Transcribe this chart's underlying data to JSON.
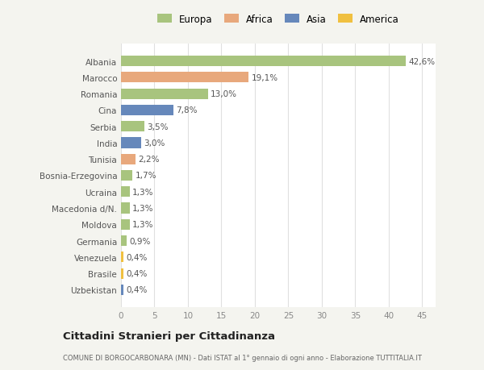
{
  "countries": [
    "Albania",
    "Marocco",
    "Romania",
    "Cina",
    "Serbia",
    "India",
    "Tunisia",
    "Bosnia-Erzegovina",
    "Ucraina",
    "Macedonia d/N.",
    "Moldova",
    "Germania",
    "Venezuela",
    "Brasile",
    "Uzbekistan"
  ],
  "values": [
    42.6,
    19.1,
    13.0,
    7.8,
    3.5,
    3.0,
    2.2,
    1.7,
    1.3,
    1.3,
    1.3,
    0.9,
    0.4,
    0.4,
    0.4
  ],
  "labels": [
    "42,6%",
    "19,1%",
    "13,0%",
    "7,8%",
    "3,5%",
    "3,0%",
    "2,2%",
    "1,7%",
    "1,3%",
    "1,3%",
    "1,3%",
    "0,9%",
    "0,4%",
    "0,4%",
    "0,4%"
  ],
  "continents": [
    "Europa",
    "Africa",
    "Europa",
    "Asia",
    "Europa",
    "Asia",
    "Africa",
    "Europa",
    "Europa",
    "Europa",
    "Europa",
    "Europa",
    "America",
    "America",
    "Asia"
  ],
  "colors": {
    "Europa": "#a8c47e",
    "Africa": "#e8a87c",
    "Asia": "#6688bb",
    "America": "#f0c040"
  },
  "xlim": [
    0,
    47
  ],
  "xticks": [
    0,
    5,
    10,
    15,
    20,
    25,
    30,
    35,
    40,
    45
  ],
  "title": "Cittadini Stranieri per Cittadinanza",
  "subtitle": "COMUNE DI BORGOCARBONARA (MN) - Dati ISTAT al 1° gennaio di ogni anno - Elaborazione TUTTITALIA.IT",
  "bg_color": "#f4f4ef",
  "bar_bg_color": "#ffffff",
  "grid_color": "#e0e0e0"
}
